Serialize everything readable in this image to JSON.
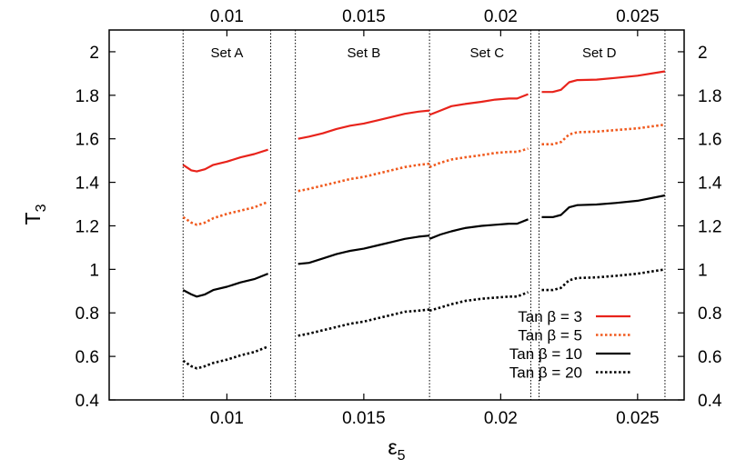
{
  "chart_data": {
    "type": "line",
    "xlabel": "ε",
    "xlabel_sub": "5",
    "ylabel": "T",
    "ylabel_sub": "3",
    "xlim": [
      0.0057,
      0.0267
    ],
    "ylim": [
      0.4,
      2.1
    ],
    "x_ticks": [
      0.01,
      0.015,
      0.02,
      0.025
    ],
    "x_tick_labels": [
      "0.01",
      "0.015",
      "0.02",
      "0.025"
    ],
    "top_x_tick_labels": [
      "0.01",
      "0.015",
      "0.02",
      "0.025"
    ],
    "y_ticks": [
      0.4,
      0.6,
      0.8,
      1.0,
      1.2,
      1.4,
      1.6,
      1.8,
      2.0
    ],
    "y_tick_labels": [
      "0.4",
      "0.6",
      "0.8",
      "1",
      "1.2",
      "1.4",
      "1.6",
      "1.8",
      "2"
    ],
    "right_y_tick_labels": [
      "0.4",
      "0.6",
      "0.8",
      "1",
      "1.2",
      "1.4",
      "1.6",
      "1.8",
      "2"
    ],
    "grid": false,
    "legend_position": "bottom-right",
    "set_boundaries": [
      0.0084,
      0.0116,
      0.0125,
      0.0174,
      0.0211,
      0.0214,
      0.026
    ],
    "sets": [
      {
        "label": "Set A",
        "x": 0.01
      },
      {
        "label": "Set B",
        "x": 0.015
      },
      {
        "label": "Set C",
        "x": 0.0195
      },
      {
        "label": "Set D",
        "x": 0.0236
      }
    ],
    "series": [
      {
        "name": "Tan β =   3",
        "color": "#e8231b",
        "style": "solid",
        "segments": [
          [
            [
              0.0084,
              1.48
            ],
            [
              0.0087,
              1.455
            ],
            [
              0.0089,
              1.45
            ],
            [
              0.0092,
              1.46
            ],
            [
              0.0095,
              1.48
            ],
            [
              0.01,
              1.495
            ],
            [
              0.0105,
              1.515
            ],
            [
              0.011,
              1.53
            ],
            [
              0.0115,
              1.55
            ]
          ],
          [
            [
              0.0126,
              1.6
            ],
            [
              0.013,
              1.61
            ],
            [
              0.0135,
              1.625
            ],
            [
              0.014,
              1.645
            ],
            [
              0.0145,
              1.66
            ],
            [
              0.015,
              1.67
            ],
            [
              0.0155,
              1.685
            ],
            [
              0.016,
              1.7
            ],
            [
              0.0165,
              1.715
            ],
            [
              0.017,
              1.725
            ],
            [
              0.0174,
              1.73
            ]
          ],
          [
            [
              0.0174,
              1.71
            ],
            [
              0.0178,
              1.73
            ],
            [
              0.0182,
              1.75
            ],
            [
              0.0187,
              1.76
            ],
            [
              0.0193,
              1.77
            ],
            [
              0.0198,
              1.78
            ],
            [
              0.0203,
              1.785
            ],
            [
              0.0206,
              1.785
            ],
            [
              0.021,
              1.805
            ]
          ],
          [
            [
              0.0215,
              1.815
            ],
            [
              0.0219,
              1.815
            ],
            [
              0.0222,
              1.825
            ],
            [
              0.0225,
              1.86
            ],
            [
              0.0228,
              1.87
            ],
            [
              0.0235,
              1.872
            ],
            [
              0.0242,
              1.88
            ],
            [
              0.025,
              1.89
            ],
            [
              0.026,
              1.91
            ]
          ]
        ]
      },
      {
        "name": "Tan β =   5",
        "color": "#f05a1e",
        "style": "dotted",
        "segments": [
          [
            [
              0.0084,
              1.24
            ],
            [
              0.0087,
              1.215
            ],
            [
              0.0089,
              1.205
            ],
            [
              0.0092,
              1.215
            ],
            [
              0.0095,
              1.235
            ],
            [
              0.01,
              1.255
            ],
            [
              0.0105,
              1.27
            ],
            [
              0.011,
              1.285
            ],
            [
              0.0115,
              1.31
            ]
          ],
          [
            [
              0.0126,
              1.36
            ],
            [
              0.013,
              1.37
            ],
            [
              0.0135,
              1.385
            ],
            [
              0.014,
              1.4
            ],
            [
              0.0145,
              1.415
            ],
            [
              0.015,
              1.425
            ],
            [
              0.0155,
              1.44
            ],
            [
              0.016,
              1.455
            ],
            [
              0.0165,
              1.47
            ],
            [
              0.017,
              1.48
            ],
            [
              0.0174,
              1.485
            ]
          ],
          [
            [
              0.0174,
              1.47
            ],
            [
              0.0178,
              1.49
            ],
            [
              0.0182,
              1.505
            ],
            [
              0.0187,
              1.515
            ],
            [
              0.0193,
              1.525
            ],
            [
              0.0198,
              1.535
            ],
            [
              0.0203,
              1.54
            ],
            [
              0.0206,
              1.54
            ],
            [
              0.021,
              1.555
            ]
          ],
          [
            [
              0.0215,
              1.575
            ],
            [
              0.0219,
              1.575
            ],
            [
              0.0222,
              1.585
            ],
            [
              0.0225,
              1.62
            ],
            [
              0.0228,
              1.63
            ],
            [
              0.0235,
              1.633
            ],
            [
              0.0242,
              1.64
            ],
            [
              0.025,
              1.648
            ],
            [
              0.026,
              1.665
            ]
          ]
        ]
      },
      {
        "name": "Tan β = 10",
        "color": "#000000",
        "style": "solid",
        "segments": [
          [
            [
              0.0084,
              0.905
            ],
            [
              0.0087,
              0.885
            ],
            [
              0.0089,
              0.875
            ],
            [
              0.0092,
              0.885
            ],
            [
              0.0095,
              0.905
            ],
            [
              0.01,
              0.92
            ],
            [
              0.0105,
              0.94
            ],
            [
              0.011,
              0.955
            ],
            [
              0.0115,
              0.98
            ]
          ],
          [
            [
              0.0126,
              1.025
            ],
            [
              0.013,
              1.03
            ],
            [
              0.0135,
              1.05
            ],
            [
              0.014,
              1.07
            ],
            [
              0.0145,
              1.085
            ],
            [
              0.015,
              1.095
            ],
            [
              0.0155,
              1.11
            ],
            [
              0.016,
              1.125
            ],
            [
              0.0165,
              1.14
            ],
            [
              0.017,
              1.15
            ],
            [
              0.0174,
              1.155
            ]
          ],
          [
            [
              0.0174,
              1.14
            ],
            [
              0.0178,
              1.16
            ],
            [
              0.0182,
              1.175
            ],
            [
              0.0187,
              1.19
            ],
            [
              0.0193,
              1.2
            ],
            [
              0.0198,
              1.205
            ],
            [
              0.0203,
              1.21
            ],
            [
              0.0206,
              1.21
            ],
            [
              0.021,
              1.23
            ]
          ],
          [
            [
              0.0215,
              1.24
            ],
            [
              0.0219,
              1.24
            ],
            [
              0.0222,
              1.25
            ],
            [
              0.0225,
              1.285
            ],
            [
              0.0228,
              1.295
            ],
            [
              0.0235,
              1.298
            ],
            [
              0.0242,
              1.305
            ],
            [
              0.025,
              1.315
            ],
            [
              0.026,
              1.34
            ]
          ]
        ]
      },
      {
        "name": "Tan β = 20",
        "color": "#000000",
        "style": "dotted",
        "segments": [
          [
            [
              0.0084,
              0.58
            ],
            [
              0.0087,
              0.555
            ],
            [
              0.0089,
              0.545
            ],
            [
              0.0092,
              0.555
            ],
            [
              0.0095,
              0.57
            ],
            [
              0.01,
              0.585
            ],
            [
              0.0105,
              0.605
            ],
            [
              0.011,
              0.62
            ],
            [
              0.0115,
              0.645
            ]
          ],
          [
            [
              0.0126,
              0.695
            ],
            [
              0.013,
              0.705
            ],
            [
              0.0135,
              0.72
            ],
            [
              0.014,
              0.735
            ],
            [
              0.0145,
              0.75
            ],
            [
              0.015,
              0.76
            ],
            [
              0.0155,
              0.775
            ],
            [
              0.016,
              0.79
            ],
            [
              0.0165,
              0.805
            ],
            [
              0.017,
              0.81
            ],
            [
              0.0174,
              0.815
            ]
          ],
          [
            [
              0.0174,
              0.81
            ],
            [
              0.0178,
              0.825
            ],
            [
              0.0182,
              0.84
            ],
            [
              0.0187,
              0.855
            ],
            [
              0.0193,
              0.865
            ],
            [
              0.0198,
              0.87
            ],
            [
              0.0203,
              0.875
            ],
            [
              0.0206,
              0.875
            ],
            [
              0.021,
              0.895
            ]
          ],
          [
            [
              0.0215,
              0.905
            ],
            [
              0.0219,
              0.905
            ],
            [
              0.0222,
              0.915
            ],
            [
              0.0225,
              0.95
            ],
            [
              0.0228,
              0.96
            ],
            [
              0.0235,
              0.963
            ],
            [
              0.0242,
              0.97
            ],
            [
              0.025,
              0.98
            ],
            [
              0.026,
              1.0
            ]
          ]
        ]
      }
    ]
  }
}
